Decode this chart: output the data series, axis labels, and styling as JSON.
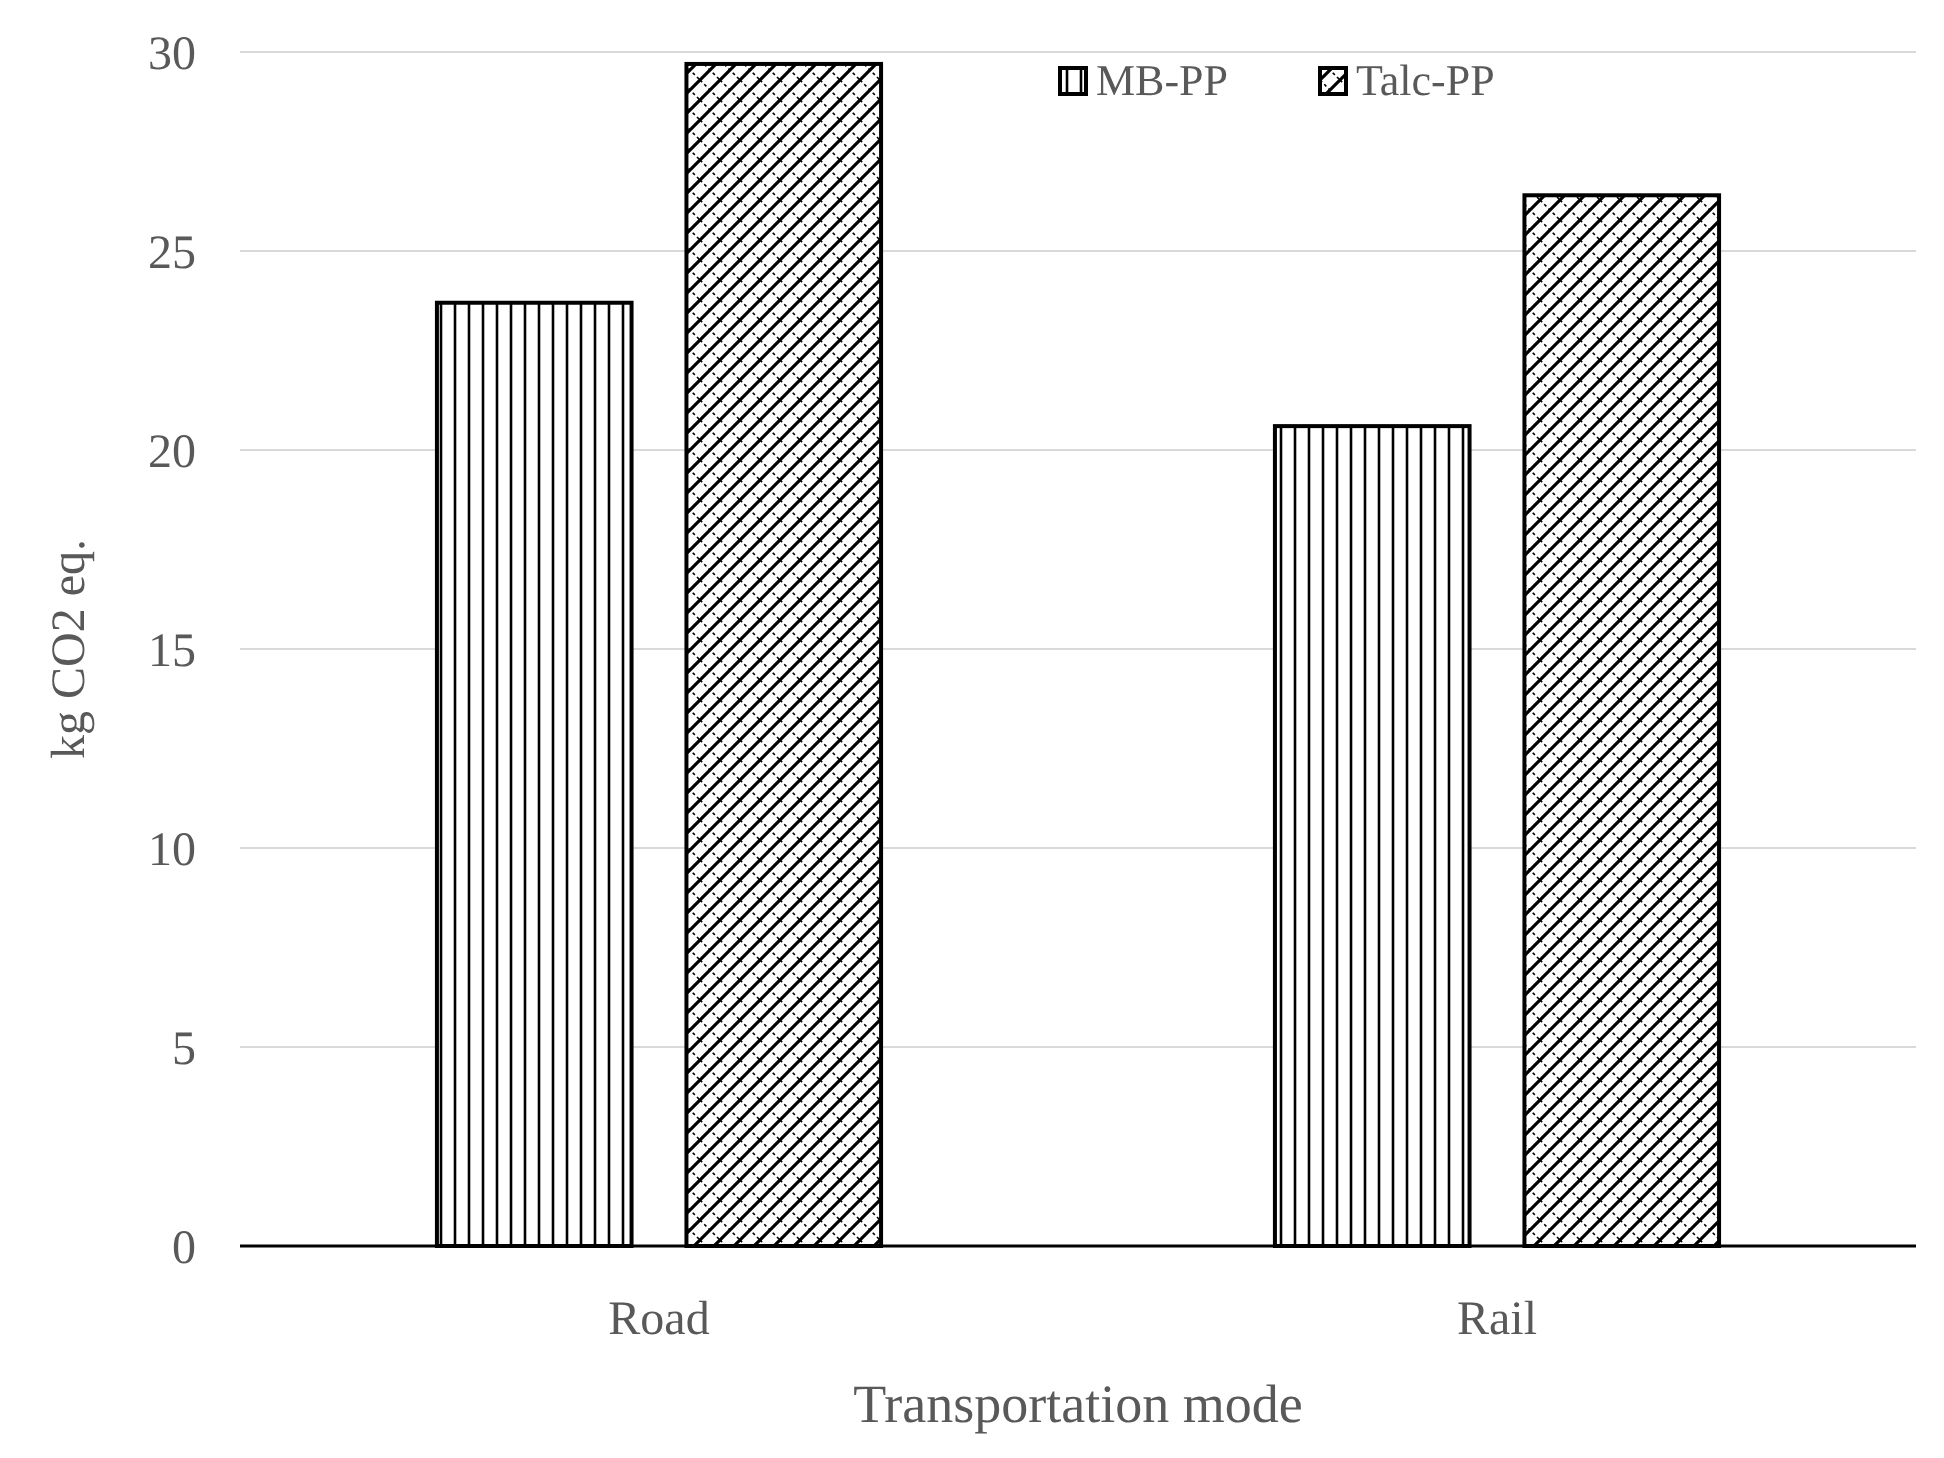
{
  "chart_data": {
    "type": "bar",
    "xlabel": "Transportation mode",
    "ylabel": "kg CO2 eq.",
    "categories": [
      "Road",
      "Rail"
    ],
    "series": [
      {
        "name": "MB-PP",
        "color": "#000000",
        "values": [
          23.7,
          20.6
        ]
      },
      {
        "name": "Talc-PP",
        "color": "#000000",
        "values": [
          29.7,
          26.4
        ]
      }
    ],
    "ylim": [
      0,
      30
    ],
    "yticks": [
      0,
      5,
      10,
      15,
      20,
      25,
      30
    ],
    "grid": "y",
    "legend": "top right"
  }
}
